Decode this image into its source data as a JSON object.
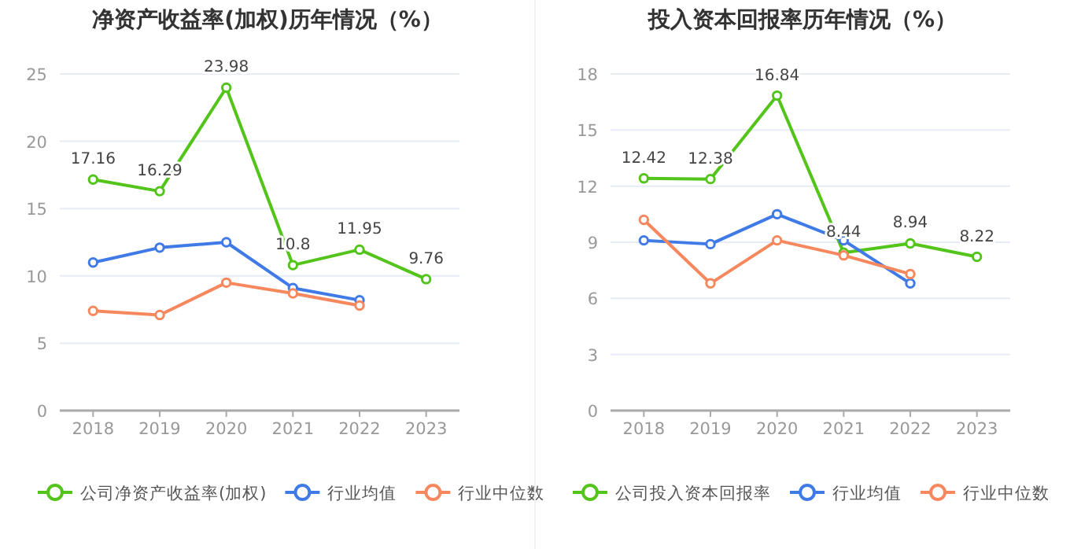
{
  "chart_data": [
    {
      "type": "line",
      "title": "净资产收益率(加权)历年情况（%）",
      "categories": [
        "2018",
        "2019",
        "2020",
        "2021",
        "2022",
        "2023"
      ],
      "ylim": [
        0,
        25
      ],
      "yticks": [
        0,
        5,
        10,
        15,
        20,
        25
      ],
      "grid": "y",
      "legend": "bottom",
      "marker": "circle",
      "series": [
        {
          "name": "公司净资产收益率(加权)",
          "color": "#52c41a",
          "values": [
            17.16,
            16.29,
            23.98,
            10.8,
            11.95,
            9.76
          ],
          "value_labels": [
            "17.16",
            "16.29",
            "23.98",
            "10.8",
            "11.95",
            "9.76"
          ]
        },
        {
          "name": "行业均值",
          "color": "#3f7ae6",
          "values": [
            11.0,
            12.1,
            12.5,
            9.1,
            8.2,
            null
          ]
        },
        {
          "name": "行业中位数",
          "color": "#f7885e",
          "values": [
            7.4,
            7.1,
            9.5,
            8.7,
            7.8,
            null
          ]
        }
      ]
    },
    {
      "type": "line",
      "title": "投入资本回报率历年情况（%）",
      "categories": [
        "2018",
        "2019",
        "2020",
        "2021",
        "2022",
        "2023"
      ],
      "ylim": [
        0,
        18
      ],
      "yticks": [
        0,
        3,
        6,
        9,
        12,
        15,
        18
      ],
      "grid": "y",
      "legend": "bottom",
      "marker": "circle",
      "series": [
        {
          "name": "公司投入资本回报率",
          "color": "#52c41a",
          "values": [
            12.42,
            12.38,
            16.84,
            8.44,
            8.94,
            8.22
          ],
          "value_labels": [
            "12.42",
            "12.38",
            "16.84",
            "8.44",
            "8.94",
            "8.22"
          ]
        },
        {
          "name": "行业均值",
          "color": "#3f7ae6",
          "values": [
            9.1,
            8.9,
            10.5,
            9.1,
            6.8,
            null
          ]
        },
        {
          "name": "行业中位数",
          "color": "#f7885e",
          "values": [
            10.2,
            6.8,
            9.1,
            8.3,
            7.3,
            null
          ]
        }
      ]
    }
  ]
}
